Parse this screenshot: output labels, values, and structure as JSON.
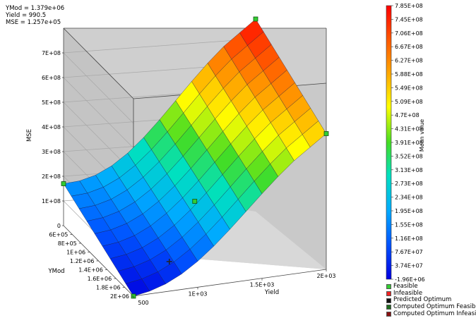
{
  "readout": {
    "ymod": "YMod = 1.379e+06",
    "yield": "Yield = 990.5",
    "mse": "MSE = 1.257e+05"
  },
  "chart_data": {
    "type": "surface",
    "zlabel": "MSE",
    "xlabel": "YMod",
    "ylabel": "Yield",
    "xlim": [
      400000,
      2000000
    ],
    "ylim": [
      500,
      2000
    ],
    "zlim": [
      0,
      800000000
    ],
    "z_ticks": [
      "0",
      "1E+08",
      "2E+08",
      "3E+08",
      "4E+08",
      "5E+08",
      "6E+08",
      "7E+08"
    ],
    "x_ticks": [
      "6E+05",
      "8E+05",
      "1E+06",
      "1.2E+06",
      "1.4E+06",
      "1.6E+06",
      "1.8E+06",
      "2E+06"
    ],
    "y_ticks": [
      "500",
      "1E+03",
      "1.5E+03",
      "2E+03"
    ],
    "surface_corners": [
      {
        "ymod": 400000,
        "yield": 500,
        "mse": 170000000
      },
      {
        "ymod": 2000000,
        "yield": 500,
        "mse": 0
      },
      {
        "ymod": 400000,
        "yield": 2000,
        "mse": 780000000
      },
      {
        "ymod": 2000000,
        "yield": 2000,
        "mse": 550000000
      }
    ],
    "points": [
      {
        "ymod": 400000,
        "yield": 500,
        "mse": 170000000,
        "kind": "Feasible"
      },
      {
        "ymod": 400000,
        "yield": 2000,
        "mse": 780000000,
        "kind": "Feasible"
      },
      {
        "ymod": 2000000,
        "yield": 2000,
        "mse": 550000000,
        "kind": "Feasible"
      },
      {
        "ymod": 1200000,
        "yield": 1250,
        "mse": 200000000,
        "kind": "Feasible"
      },
      {
        "ymod": 2000000,
        "yield": 500,
        "mse": 0,
        "kind": "Feasible"
      },
      {
        "ymod": 1379000,
        "yield": 990.5,
        "mse": 125700,
        "kind": "Predicted Optimum"
      }
    ],
    "colorbar": {
      "label": "Mean value",
      "ticks": [
        "7.85E+08",
        "7.45E+08",
        "7.06E+08",
        "6.67E+08",
        "6.27E+08",
        "5.88E+08",
        "5.49E+08",
        "5.09E+08",
        "4.7E+08",
        "4.31E+08",
        "3.91E+08",
        "3.52E+08",
        "3.13E+08",
        "2.73E+08",
        "2.34E+08",
        "1.95E+08",
        "1.55E+08",
        "1.16E+08",
        "7.67E+07",
        "3.74E+07",
        "-1.96E+06"
      ],
      "range": [
        -1960000,
        785000000
      ]
    },
    "legend": [
      {
        "label": "Feasible",
        "color": "#33cc33"
      },
      {
        "label": "Infeasible",
        "color": "#ee2222"
      },
      {
        "label": "Predicted Optimum",
        "color": "#111111"
      },
      {
        "label": "Computed Optimum Feasible",
        "color": "#1f6b1f"
      },
      {
        "label": "Computed Optimum Infeasible",
        "color": "#881111"
      }
    ]
  }
}
